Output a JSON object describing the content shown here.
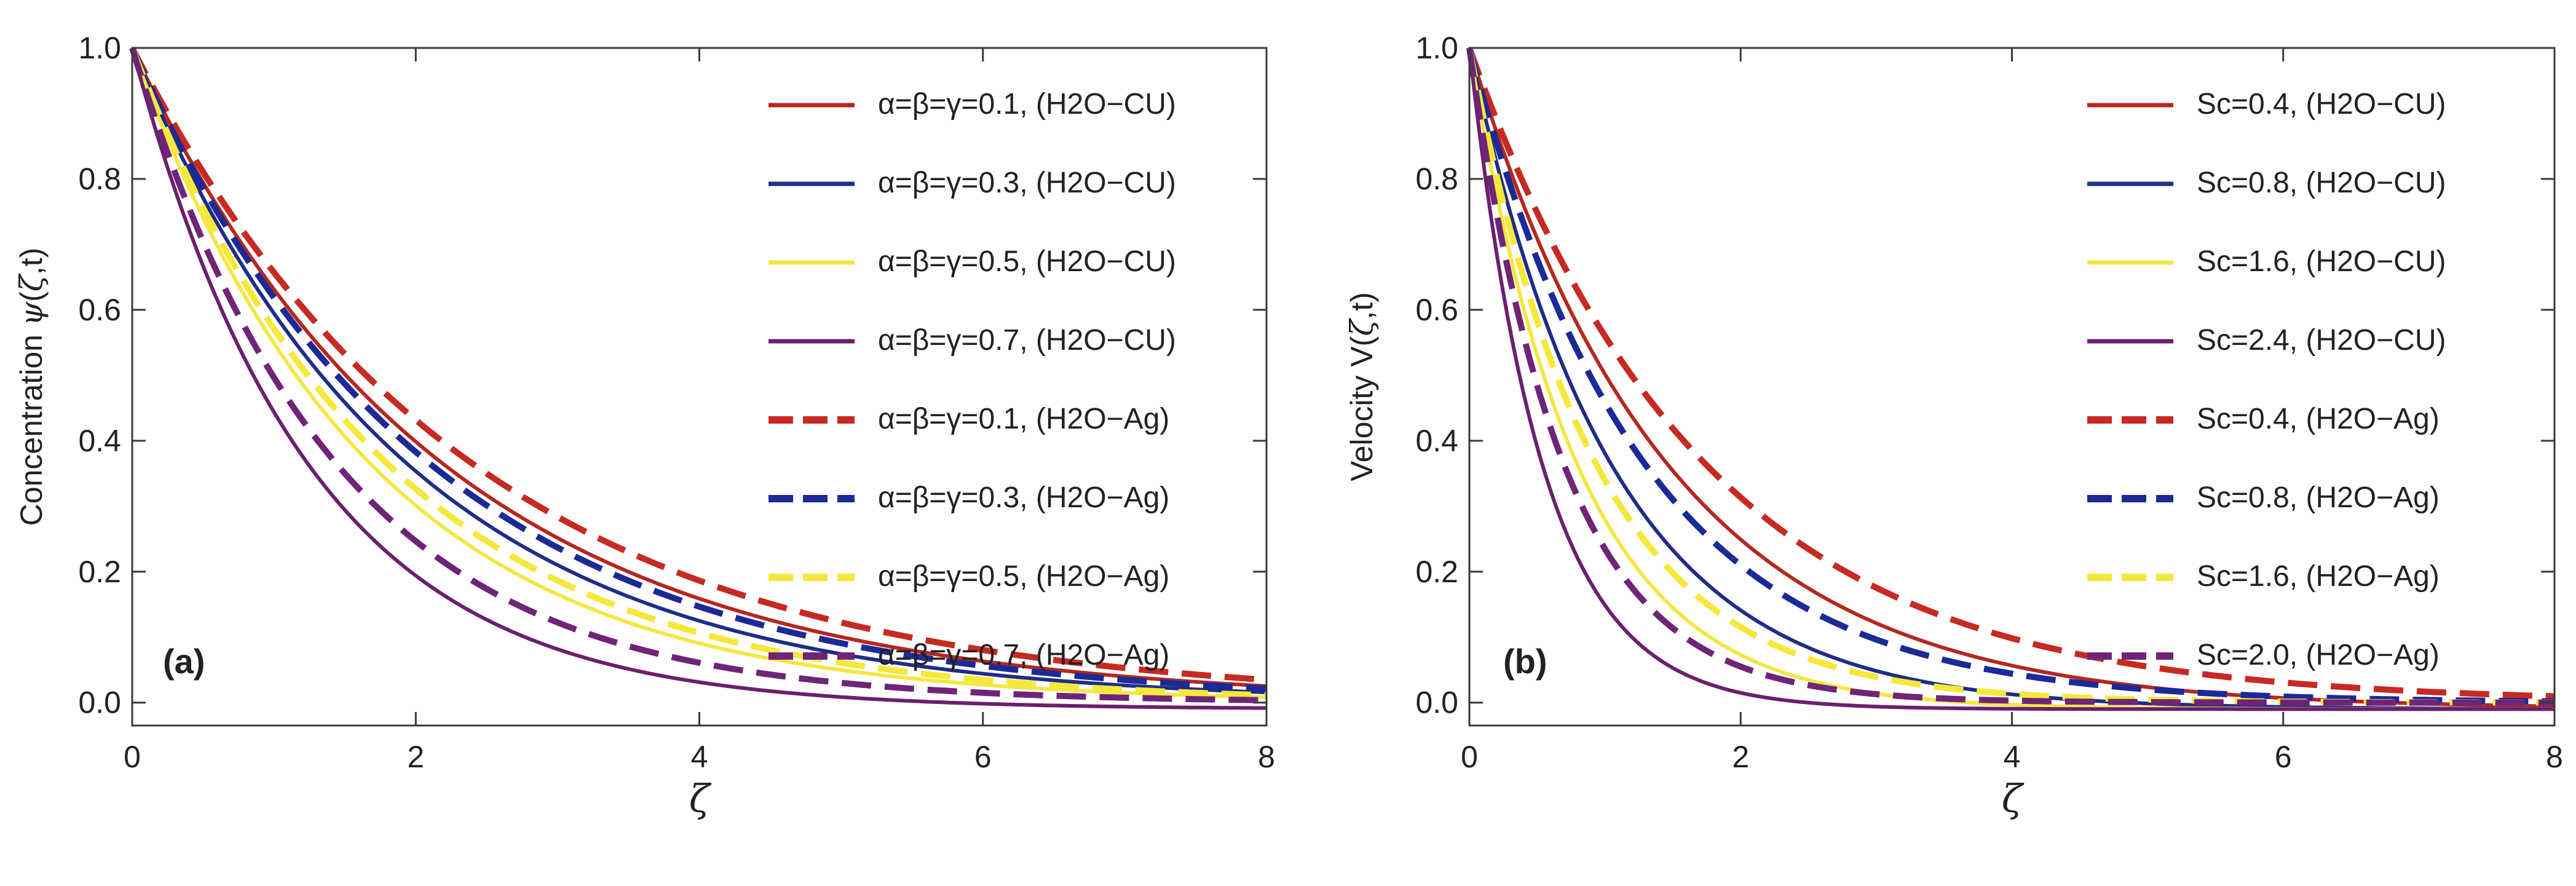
{
  "chart_data": [
    {
      "type": "line",
      "panel_label": "(a)",
      "ylabel_parts": [
        "Concentration ",
        "ψ",
        "(",
        "ζ",
        ",t)"
      ],
      "xlabel": "ζ",
      "xlim": [
        0,
        8
      ],
      "ylim": [
        0,
        1
      ],
      "xticks": [
        "0",
        "2",
        "4",
        "6",
        "8"
      ],
      "yticks": [
        "0.0",
        "0.2",
        "0.4",
        "0.6",
        "0.8",
        "1.0"
      ],
      "series": [
        {
          "name": "α=β=γ=0.1",
          "fluid": "(H2O−CU)",
          "color": "#b5271f",
          "dash": false,
          "decay": 0.46,
          "tail": 0.0
        },
        {
          "name": "α=β=γ=0.3",
          "fluid": "(H2O−CU)",
          "color": "#1f2d86",
          "dash": false,
          "decay": 0.52,
          "tail": 0.0
        },
        {
          "name": "α=β=γ=0.5",
          "fluid": "(H2O−CU)",
          "color": "#f4e742",
          "dash": false,
          "decay": 0.6,
          "tail": 0.0
        },
        {
          "name": "α=β=γ=0.7",
          "fluid": "(H2O−CU)",
          "color": "#6b1f6f",
          "dash": false,
          "decay": 0.8,
          "tail": -0.01
        },
        {
          "name": "α=β=γ=0.1",
          "fluid": "(H2O−Ag)",
          "color": "#c62a22",
          "dash": true,
          "decay": 0.42,
          "tail": 0.0
        },
        {
          "name": "α=β=γ=0.3",
          "fluid": "(H2O−Ag)",
          "color": "#1b2a96",
          "dash": true,
          "decay": 0.48,
          "tail": 0.0
        },
        {
          "name": "α=β=γ=0.5",
          "fluid": "(H2O−Ag)",
          "color": "#f5e83a",
          "dash": true,
          "decay": 0.56,
          "tail": 0.0
        },
        {
          "name": "α=β=γ=0.7",
          "fluid": "(H2O−Ag)",
          "color": "#6e2577",
          "dash": true,
          "decay": 0.7,
          "tail": 0.0
        }
      ]
    },
    {
      "type": "line",
      "panel_label": "(b)",
      "ylabel_parts": [
        "Velocity V(",
        "ζ",
        ",t)"
      ],
      "xlabel": "ζ",
      "xlim": [
        0,
        8
      ],
      "ylim": [
        0,
        1
      ],
      "xticks": [
        "0",
        "2",
        "4",
        "6",
        "8"
      ],
      "yticks": [
        "0.0",
        "0.2",
        "0.4",
        "0.6",
        "0.8",
        "1.0"
      ],
      "series": [
        {
          "name": "Sc=0.4",
          "fluid": "(H2O−CU)",
          "color": "#b5271f",
          "dash": false,
          "decay": 0.68,
          "tail": -0.01
        },
        {
          "name": "Sc=0.8",
          "fluid": "(H2O−CU)",
          "color": "#1f2d86",
          "dash": false,
          "decay": 0.95,
          "tail": -0.01
        },
        {
          "name": "Sc=1.6",
          "fluid": "(H2O−CU)",
          "color": "#f4e742",
          "dash": false,
          "decay": 1.25,
          "tail": -0.01
        },
        {
          "name": "Sc=2.4",
          "fluid": "(H2O−CU)",
          "color": "#6b1f6f",
          "dash": false,
          "decay": 1.85,
          "tail": -0.01
        },
        {
          "name": "Sc=0.4",
          "fluid": "(H2O−Ag)",
          "color": "#c62a22",
          "dash": true,
          "decay": 0.58,
          "tail": 0.0
        },
        {
          "name": "Sc=0.8",
          "fluid": "(H2O−Ag)",
          "color": "#1b2a96",
          "dash": true,
          "decay": 0.78,
          "tail": 0.0
        },
        {
          "name": "Sc=1.6",
          "fluid": "(H2O−Ag)",
          "color": "#f5e83a",
          "dash": true,
          "decay": 1.08,
          "tail": 0.0
        },
        {
          "name": "Sc=2.0",
          "fluid": "(H2O−Ag)",
          "color": "#6e2577",
          "dash": true,
          "decay": 1.45,
          "tail": 0.0
        }
      ]
    }
  ]
}
